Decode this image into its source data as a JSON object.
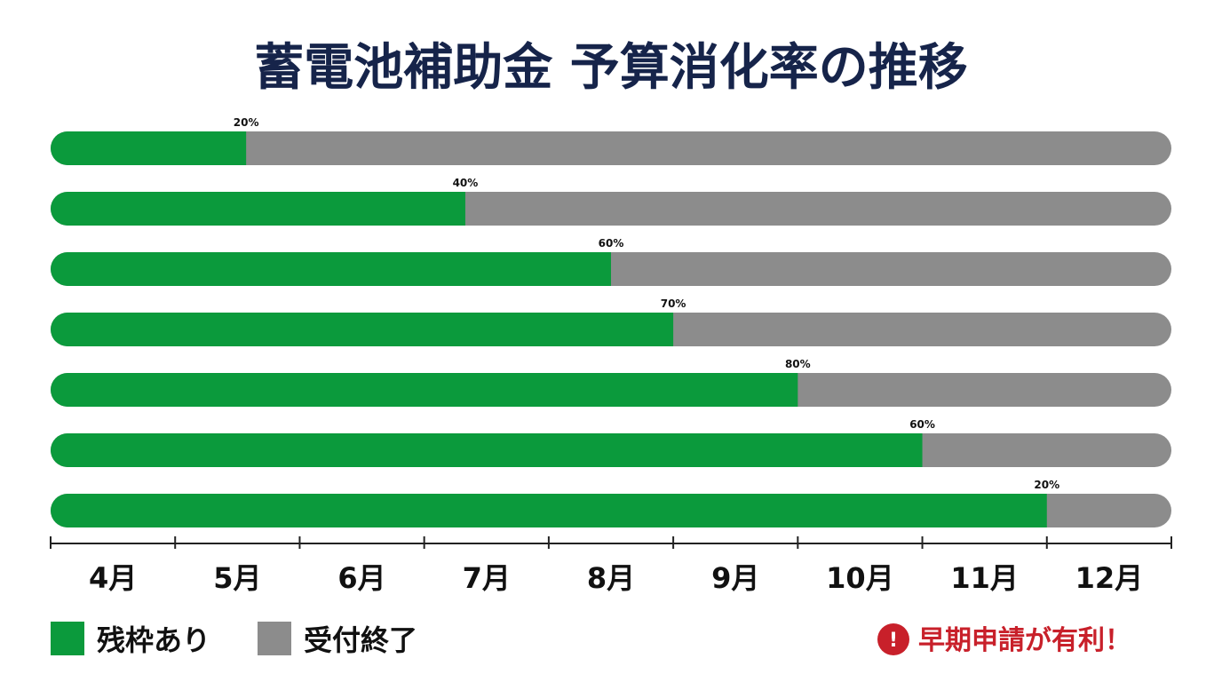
{
  "chart_data": {
    "type": "bar",
    "orientation": "horizontal-stacked",
    "title": "蓄電池補助金 予算消化率の推移",
    "categories": [
      "4月",
      "5月",
      "6月",
      "7月",
      "8月",
      "9月",
      "10月",
      "11月",
      "12月"
    ],
    "bars": [
      {
        "end": 1.57,
        "label": "20%"
      },
      {
        "end": 3.33,
        "label": "40%"
      },
      {
        "end": 4.5,
        "label": "60%"
      },
      {
        "end": 5.0,
        "label": "70%"
      },
      {
        "end": 6.0,
        "label": "80%"
      },
      {
        "end": 7.0,
        "label": "60%"
      },
      {
        "end": 8.0,
        "label": "20%"
      }
    ],
    "x_range": [
      0,
      9
    ],
    "series": [
      {
        "name": "残枠あり",
        "color": "#0b9a3c"
      },
      {
        "name": "受付終了",
        "color": "#8c8c8c"
      }
    ],
    "legend_position": "bottom-left",
    "grid": false
  },
  "note": {
    "text": "早期申請が有利！",
    "icon": "exclamation-circle-icon",
    "icon_glyph": "!",
    "color": "#c8202a"
  },
  "colors": {
    "title": "#16244a",
    "green": "#0b9a3c",
    "gray": "#8c8c8c"
  }
}
